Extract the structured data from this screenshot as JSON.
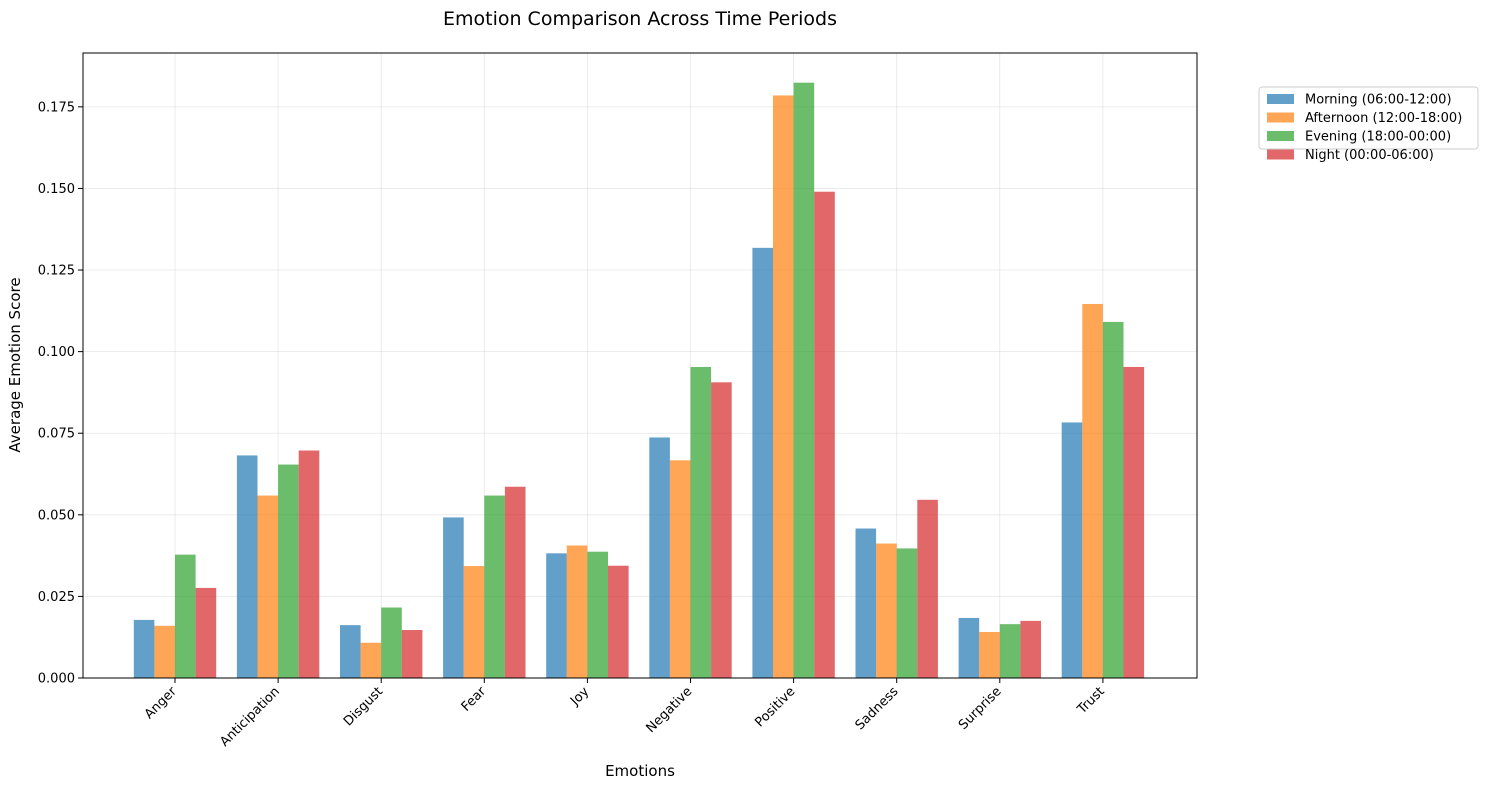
{
  "chart_data": {
    "type": "bar",
    "title": "Emotion Comparison Across Time Periods",
    "xlabel": "Emotions",
    "ylabel": "Average Emotion Score",
    "ylim": [
      0,
      0.1915
    ],
    "yticks": [
      "0.000",
      "0.025",
      "0.050",
      "0.075",
      "0.100",
      "0.125",
      "0.150",
      "0.175"
    ],
    "grid": true,
    "legend_position": "outside top-right",
    "categories": [
      "Anger",
      "Anticipation",
      "Disgust",
      "Fear",
      "Joy",
      "Negative",
      "Positive",
      "Sadness",
      "Surprise",
      "Trust"
    ],
    "series": [
      {
        "name": "Morning (06:00-12:00)",
        "color": "#1f77b4",
        "values": [
          0.0178,
          0.0682,
          0.0162,
          0.0492,
          0.0382,
          0.0737,
          0.1318,
          0.0458,
          0.0184,
          0.0783
        ]
      },
      {
        "name": "Afternoon (12:00-18:00)",
        "color": "#ff7f0e",
        "values": [
          0.016,
          0.0559,
          0.0108,
          0.0343,
          0.0406,
          0.0667,
          0.1785,
          0.0412,
          0.0141,
          0.1146
        ]
      },
      {
        "name": "Evening (18:00-00:00)",
        "color": "#2ca02c",
        "values": [
          0.0378,
          0.0654,
          0.0216,
          0.0559,
          0.0387,
          0.0953,
          0.1824,
          0.0397,
          0.0165,
          0.1091
        ]
      },
      {
        "name": "Night (00:00-06:00)",
        "color": "#d62728",
        "values": [
          0.0276,
          0.0697,
          0.0147,
          0.0586,
          0.0344,
          0.0906,
          0.149,
          0.0546,
          0.0175,
          0.0953
        ]
      }
    ]
  }
}
